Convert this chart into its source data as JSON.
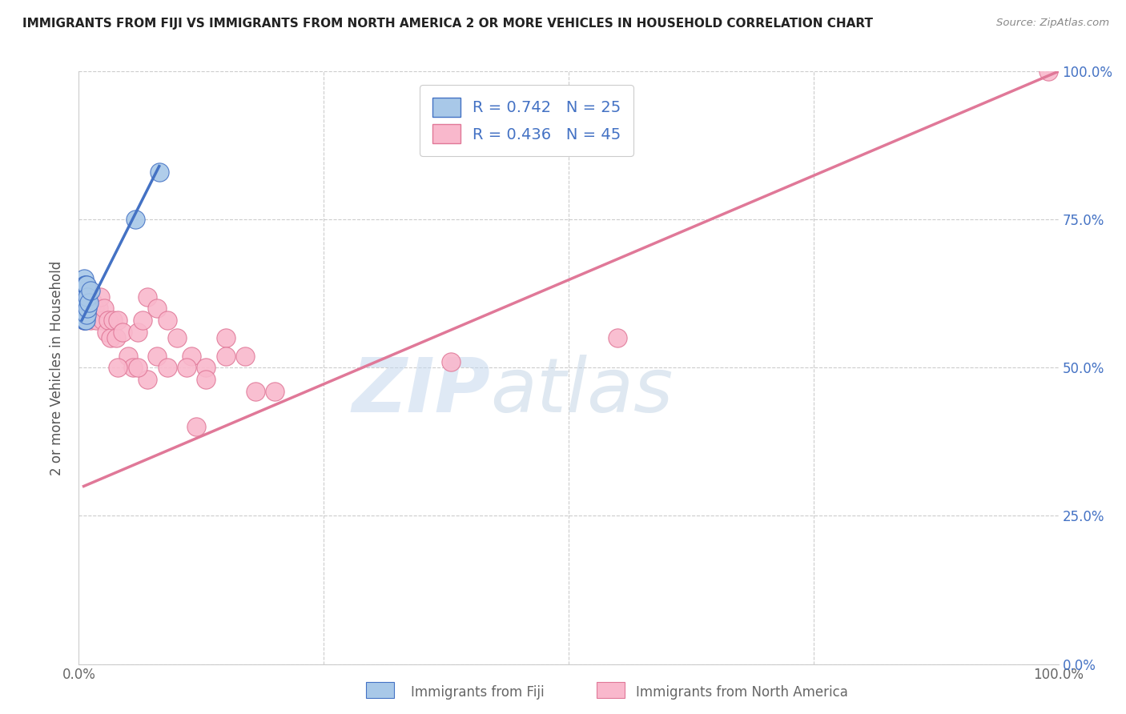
{
  "title": "IMMIGRANTS FROM FIJI VS IMMIGRANTS FROM NORTH AMERICA 2 OR MORE VEHICLES IN HOUSEHOLD CORRELATION CHART",
  "source": "Source: ZipAtlas.com",
  "ylabel": "2 or more Vehicles in Household",
  "fiji_color": "#a8c8e8",
  "fiji_edge_color": "#4472c4",
  "na_color": "#f9b8cc",
  "na_edge_color": "#e07898",
  "fiji_line_color": "#4472c4",
  "na_line_color": "#e07898",
  "legend_text_color": "#4472c4",
  "fiji_R": 0.742,
  "fiji_N": 25,
  "na_R": 0.436,
  "na_N": 45,
  "xlim": [
    0.0,
    1.0
  ],
  "ylim": [
    0.0,
    1.0
  ],
  "ytick_positions": [
    0.0,
    0.25,
    0.5,
    0.75,
    1.0
  ],
  "ytick_labels": [
    "0.0%",
    "25.0%",
    "50.0%",
    "75.0%",
    "100.0%"
  ],
  "fiji_points_x": [
    0.003,
    0.003,
    0.004,
    0.004,
    0.005,
    0.005,
    0.005,
    0.005,
    0.006,
    0.006,
    0.006,
    0.006,
    0.007,
    0.007,
    0.007,
    0.007,
    0.008,
    0.008,
    0.008,
    0.009,
    0.009,
    0.01,
    0.012,
    0.058,
    0.082
  ],
  "fiji_points_y": [
    0.6,
    0.62,
    0.6,
    0.63,
    0.58,
    0.61,
    0.63,
    0.65,
    0.58,
    0.6,
    0.62,
    0.64,
    0.58,
    0.6,
    0.62,
    0.64,
    0.59,
    0.61,
    0.64,
    0.6,
    0.62,
    0.61,
    0.63,
    0.75,
    0.83
  ],
  "fiji_line_x": [
    0.003,
    0.082
  ],
  "fiji_line_y": [
    0.58,
    0.84
  ],
  "na_line_x": [
    0.005,
    1.0
  ],
  "na_line_y": [
    0.3,
    1.0
  ],
  "na_points_x": [
    0.005,
    0.007,
    0.008,
    0.01,
    0.012,
    0.014,
    0.016,
    0.018,
    0.02,
    0.022,
    0.024,
    0.026,
    0.028,
    0.03,
    0.032,
    0.035,
    0.038,
    0.04,
    0.045,
    0.05,
    0.055,
    0.06,
    0.065,
    0.07,
    0.08,
    0.09,
    0.1,
    0.115,
    0.13,
    0.15,
    0.07,
    0.08,
    0.09,
    0.11,
    0.13,
    0.15,
    0.17,
    0.04,
    0.06,
    0.38,
    0.2,
    0.18,
    0.99,
    0.55,
    0.12
  ],
  "na_points_y": [
    0.58,
    0.6,
    0.62,
    0.63,
    0.58,
    0.61,
    0.6,
    0.58,
    0.6,
    0.62,
    0.58,
    0.6,
    0.56,
    0.58,
    0.55,
    0.58,
    0.55,
    0.58,
    0.56,
    0.52,
    0.5,
    0.56,
    0.58,
    0.62,
    0.6,
    0.58,
    0.55,
    0.52,
    0.5,
    0.55,
    0.48,
    0.52,
    0.5,
    0.5,
    0.48,
    0.52,
    0.52,
    0.5,
    0.5,
    0.51,
    0.46,
    0.46,
    1.0,
    0.55,
    0.4
  ]
}
